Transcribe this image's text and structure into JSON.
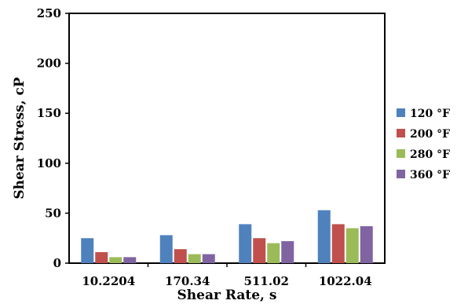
{
  "chart_data": {
    "type": "bar",
    "title": "",
    "xlabel": "Shear Rate, s",
    "ylabel": "Shear Stress, cP",
    "ylim": [
      0,
      250
    ],
    "yticks": [
      "0",
      "50",
      "100",
      "150",
      "200",
      "250"
    ],
    "categories": [
      "10.2204",
      "170.34",
      "511.02",
      "1022.04"
    ],
    "series": [
      {
        "name": "120 °F",
        "color": "#4F81BD",
        "values": [
          25,
          28,
          39,
          53
        ]
      },
      {
        "name": "200 °F",
        "color": "#C0504D",
        "values": [
          11,
          14,
          25,
          39
        ]
      },
      {
        "name": "280 °F",
        "color": "#9BBB59",
        "values": [
          6,
          9,
          20,
          35
        ]
      },
      {
        "name": "360 °F",
        "color": "#8064A2",
        "values": [
          6,
          9,
          22,
          37
        ]
      }
    ],
    "grid": false,
    "legend_position": "right"
  }
}
